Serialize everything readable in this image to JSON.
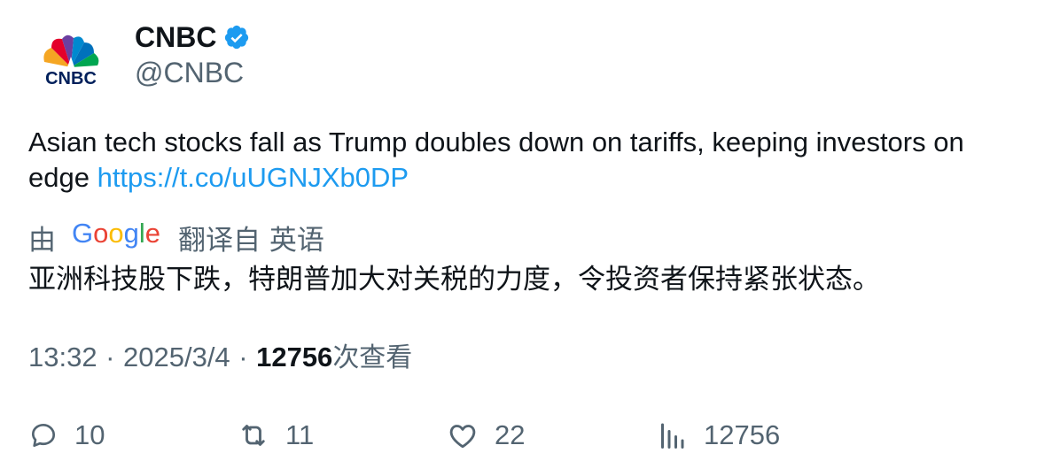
{
  "author": {
    "name": "CNBC",
    "handle": "@CNBC",
    "verified": true,
    "avatar_text": "CNBC"
  },
  "tweet": {
    "text": "Asian tech stocks fall as Trump doubles down on tariffs, keeping investors on edge ",
    "link": "https://t.co/uUGNJXb0DP"
  },
  "translation": {
    "prefix": "由",
    "provider": "Google",
    "suffix": "翻译自 英语",
    "text": "亚洲科技股下跌，特朗普加大对关税的力度，令投资者保持紧张状态。"
  },
  "meta": {
    "time": "13:32",
    "separator": "·",
    "date": "2025/3/4",
    "views_count": "12756",
    "views_label": "次查看"
  },
  "actions": {
    "replies": "10",
    "retweets": "11",
    "likes": "22",
    "views": "12756"
  },
  "colors": {
    "text": "#0f1419",
    "secondary": "#536471",
    "link": "#1d9bf0",
    "verified": "#1d9bf0"
  },
  "icons": {
    "avatar": "cnbc-peacock-logo",
    "verified": "verified-badge-icon",
    "reply": "reply-icon",
    "retweet": "retweet-icon",
    "like": "heart-icon",
    "views": "views-bar-chart-icon"
  }
}
